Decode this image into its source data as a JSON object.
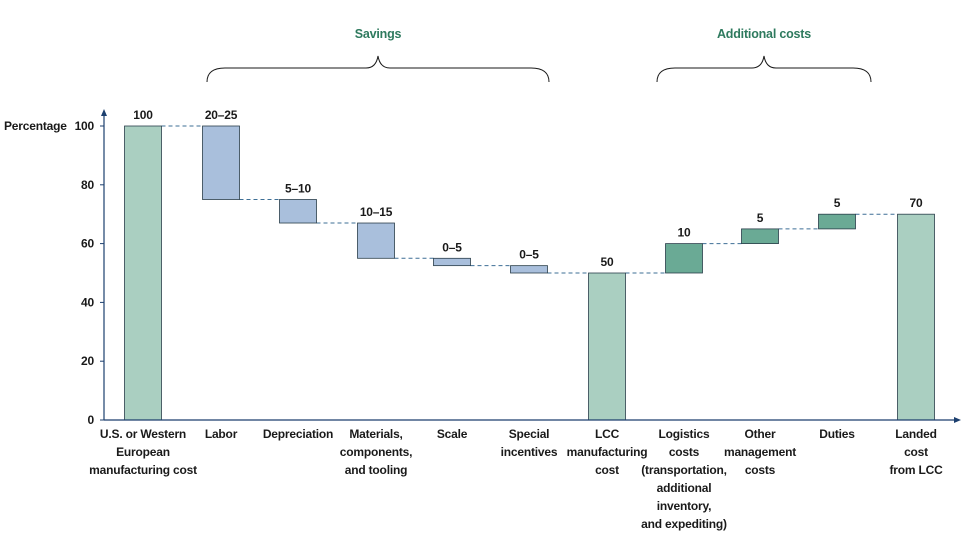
{
  "chart_data": {
    "type": "bar",
    "subtype": "waterfall",
    "ylabel": "Percentage",
    "ylim": [
      0,
      100
    ],
    "yticks": [
      0,
      20,
      40,
      60,
      80,
      100
    ],
    "grid": false,
    "categories": [
      "U.S. or Western European manufacturing cost",
      "Labor",
      "Depreciation",
      "Materials, components, and tooling",
      "Scale",
      "Special incentives",
      "LCC manufacturing cost",
      "Logistics costs (transportation, additional inventory, and expediting)",
      "Other management costs",
      "Duties",
      "Landed cost from LCC"
    ],
    "category_lines": [
      [
        "U.S. or Western",
        "European",
        "manufacturing cost"
      ],
      [
        "Labor"
      ],
      [
        "Depreciation"
      ],
      [
        "Materials,",
        "components,",
        "and tooling"
      ],
      [
        "Scale"
      ],
      [
        "Special",
        "incentives"
      ],
      [
        "LCC",
        "manufacturing",
        "cost"
      ],
      [
        "Logistics",
        "costs",
        "(transportation,",
        "additional",
        "inventory,",
        "and expediting)"
      ],
      [
        "Other",
        "management",
        "costs"
      ],
      [
        "Duties"
      ],
      [
        "Landed",
        "cost",
        "from LCC"
      ]
    ],
    "bars": [
      {
        "kind": "total",
        "start": 0,
        "end": 100,
        "label": "100"
      },
      {
        "kind": "saving",
        "start": 100,
        "end": 75,
        "label": "20–25"
      },
      {
        "kind": "saving",
        "start": 75,
        "end": 67,
        "label": "5–10"
      },
      {
        "kind": "saving",
        "start": 67,
        "end": 55,
        "label": "10–15"
      },
      {
        "kind": "saving",
        "start": 55,
        "end": 52.5,
        "label": "0–5"
      },
      {
        "kind": "saving",
        "start": 52.5,
        "end": 50,
        "label": "0–5"
      },
      {
        "kind": "total",
        "start": 0,
        "end": 50,
        "label": "50"
      },
      {
        "kind": "addition",
        "start": 50,
        "end": 60,
        "label": "10"
      },
      {
        "kind": "addition",
        "start": 60,
        "end": 65,
        "label": "5"
      },
      {
        "kind": "addition",
        "start": 65,
        "end": 70,
        "label": "5"
      },
      {
        "kind": "total",
        "start": 0,
        "end": 70,
        "label": "70"
      }
    ],
    "groups": [
      {
        "label": "Savings",
        "from_index": 1,
        "to_index": 5
      },
      {
        "label": "Additional costs",
        "from_index": 7,
        "to_index": 9
      }
    ],
    "colors": {
      "total": "#aacfc1",
      "saving": "#a9bfdc",
      "addition": "#6aaa95",
      "bar_stroke": "#2a3e4a",
      "group_title": "#2e7a5e",
      "axis": "#1c3f6e",
      "connector": "#3e6f96"
    }
  }
}
